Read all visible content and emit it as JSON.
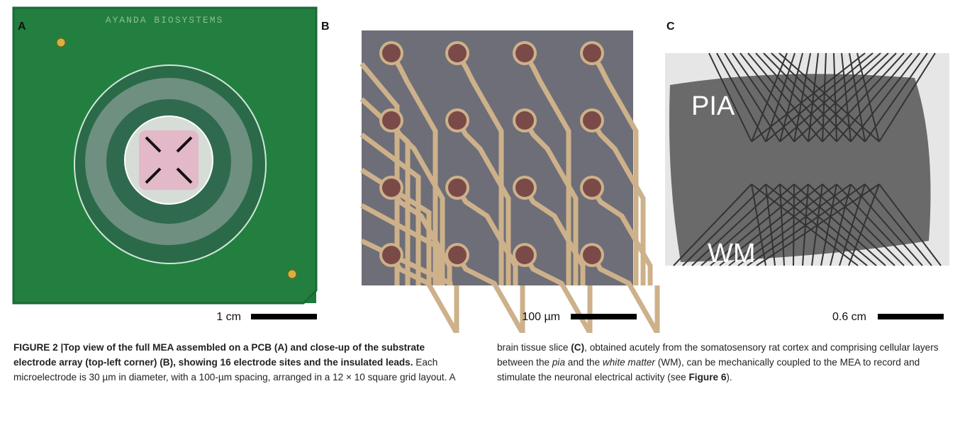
{
  "panels": [
    {
      "label": "A",
      "scale_label": "1 cm",
      "image_text": "AYANDA BIOSYSTEMS"
    },
    {
      "label": "B",
      "scale_label": "100 µm"
    },
    {
      "label": "C",
      "scale_label": "0.6 cm",
      "annotations": [
        "PIA",
        "WM"
      ]
    }
  ],
  "caption": {
    "segments": [
      {
        "text": "FIGURE 2 |Top view of the full MEA assembled on a PCB (A) and close-up of the substrate electrode array (top-left corner) (B), showing 16 electrode sites and the insulated leads.",
        "style": "bold"
      },
      {
        "text": " Each microelectrode is 30 µm in diameter, with a 100-µm spacing, arranged in a 12 × 10 square grid layout. A brain tissue slice ",
        "style": "plain"
      },
      {
        "text": "(C)",
        "style": "bold"
      },
      {
        "text": ", obtained acutely from the somatosensory rat cortex and comprising cellular layers between the ",
        "style": "plain"
      },
      {
        "text": "pia",
        "style": "italic"
      },
      {
        "text": " and the ",
        "style": "plain"
      },
      {
        "text": "white matter",
        "style": "italic"
      },
      {
        "text": " (WM), can be mechanically coupled to the MEA to record and stimulate the neuronal electrical activity (see ",
        "style": "plain"
      },
      {
        "text": "Figure 6",
        "style": "bold"
      },
      {
        "text": ").",
        "style": "plain"
      }
    ]
  }
}
